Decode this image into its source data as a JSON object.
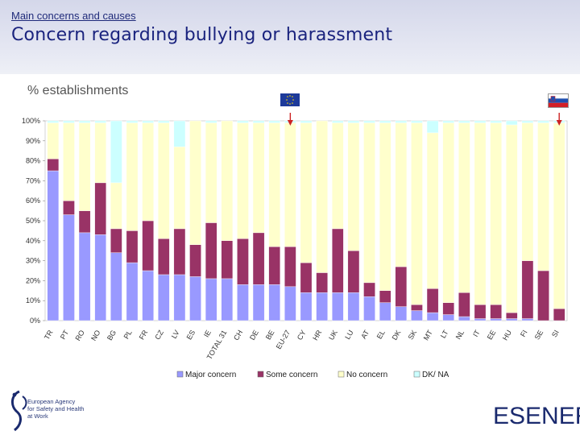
{
  "header": {
    "kicker": "Main concerns and causes",
    "title": "Concern regarding bullying or harassment"
  },
  "unit_label": "% establishments",
  "footer": {
    "agency_lines": [
      "European Agency",
      "for Safety and Health",
      "at Work"
    ],
    "logo_text": "ESENER"
  },
  "colors": {
    "major": "#9999ff",
    "some": "#993366",
    "no": "#ffffcc",
    "dk": "#ccffff",
    "highlight_arrow": "#cc2222"
  },
  "chart_data": {
    "type": "bar",
    "stacked": true,
    "title": "Concern regarding bullying or harassment",
    "xlabel": "",
    "ylabel": "% establishments",
    "ylim": [
      0,
      100
    ],
    "yticks": [
      "0%",
      "10%",
      "20%",
      "30%",
      "40%",
      "50%",
      "60%",
      "70%",
      "80%",
      "90%",
      "100%"
    ],
    "highlighted": [
      "EU-27",
      "SI"
    ],
    "categories": [
      "TR",
      "PT",
      "RO",
      "NO",
      "BG",
      "PL",
      "FR",
      "CZ",
      "LV",
      "ES",
      "IE",
      "TOTAL 31",
      "CH",
      "DE",
      "BE",
      "EU-27",
      "CY",
      "HR",
      "UK",
      "LU",
      "AT",
      "EL",
      "DK",
      "SK",
      "MT",
      "LT",
      "NL",
      "IT",
      "EE",
      "HU",
      "FI",
      "SE",
      "SI"
    ],
    "series": [
      {
        "name": "Major concern",
        "values": [
          75,
          53,
          44,
          43,
          34,
          29,
          25,
          23,
          23,
          22,
          21,
          21,
          18,
          18,
          18,
          17,
          14,
          14,
          14,
          14,
          12,
          9,
          7,
          5,
          4,
          3,
          2,
          1,
          1,
          1,
          1,
          0,
          0
        ]
      },
      {
        "name": "Some concern",
        "values": [
          6,
          7,
          11,
          26,
          12,
          16,
          25,
          18,
          23,
          16,
          28,
          19,
          23,
          26,
          19,
          20,
          15,
          10,
          32,
          21,
          7,
          6,
          20,
          3,
          12,
          6,
          12,
          7,
          7,
          3,
          29,
          25,
          6
        ]
      },
      {
        "name": "No concern",
        "values": [
          18,
          39,
          44,
          30,
          23,
          54,
          49,
          58,
          41,
          62,
          50,
          60,
          58,
          55,
          62,
          62,
          70,
          76,
          53,
          64,
          80,
          84,
          72,
          91,
          78,
          90,
          85,
          91,
          91,
          94,
          69,
          74,
          93
        ]
      },
      {
        "name": "DK/ NA",
        "values": [
          1,
          1,
          1,
          1,
          31,
          1,
          1,
          1,
          13,
          0,
          1,
          0,
          1,
          1,
          1,
          1,
          1,
          0,
          1,
          1,
          1,
          1,
          1,
          1,
          6,
          1,
          1,
          1,
          1,
          2,
          1,
          1,
          1
        ]
      }
    ],
    "legend_position": "bottom"
  }
}
